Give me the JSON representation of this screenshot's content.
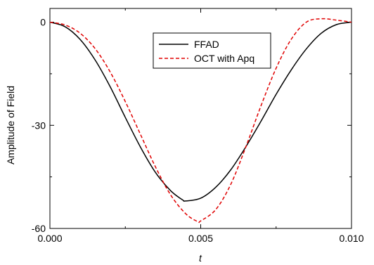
{
  "chart_data": {
    "type": "line",
    "title": "",
    "xlabel": "t",
    "ylabel": "Amplitude of Field",
    "xlim": [
      0,
      0.01
    ],
    "ylim": [
      -60,
      4
    ],
    "x_ticks": [
      0.0,
      0.005,
      0.01
    ],
    "x_tick_labels": [
      "0.000",
      "0.005",
      "0.010"
    ],
    "y_ticks": [
      0,
      -30,
      -60
    ],
    "y_tick_labels": [
      "0",
      "-30",
      "-60"
    ],
    "grid": false,
    "legend_position": "top-center",
    "series": [
      {
        "name": "FFAD",
        "color": "#000000",
        "dash": "solid",
        "x": [
          0.0,
          0.0005,
          0.001,
          0.0015,
          0.002,
          0.0025,
          0.003,
          0.0035,
          0.004,
          0.0044,
          0.0045,
          0.005,
          0.0055,
          0.006,
          0.0065,
          0.007,
          0.0075,
          0.008,
          0.0085,
          0.009,
          0.0095,
          0.01
        ],
        "y": [
          0.0,
          -1.3,
          -5.0,
          -11.0,
          -18.8,
          -27.7,
          -36.3,
          -43.7,
          -49.0,
          -51.7,
          -52.0,
          -51.2,
          -48.0,
          -42.9,
          -36.2,
          -28.8,
          -21.0,
          -13.9,
          -7.8,
          -3.2,
          -0.7,
          0.0
        ]
      },
      {
        "name": "OCT with Apq",
        "color": "#e00000",
        "dash": "dashed",
        "x": [
          0.0,
          0.0005,
          0.001,
          0.0015,
          0.002,
          0.0025,
          0.003,
          0.0035,
          0.004,
          0.0045,
          0.0049,
          0.005,
          0.0055,
          0.006,
          0.0065,
          0.007,
          0.0075,
          0.008,
          0.0085,
          0.009,
          0.0095,
          0.01
        ],
        "y": [
          0.0,
          -0.8,
          -3.2,
          -7.7,
          -14.5,
          -23.1,
          -32.6,
          -42.1,
          -50.2,
          -55.7,
          -58.0,
          -57.8,
          -54.5,
          -47.1,
          -36.2,
          -24.3,
          -13.4,
          -5.0,
          0.0,
          1.0,
          0.6,
          0.0
        ]
      }
    ]
  }
}
